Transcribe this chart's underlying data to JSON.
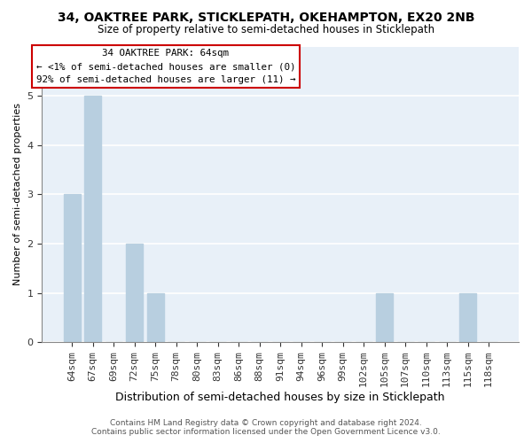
{
  "title": "34, OAKTREE PARK, STICKLEPATH, OKEHAMPTON, EX20 2NB",
  "subtitle": "Size of property relative to semi-detached houses in Sticklepath",
  "xlabel": "Distribution of semi-detached houses by size in Sticklepath",
  "ylabel": "Number of semi-detached properties",
  "categories": [
    "64sqm",
    "67sqm",
    "69sqm",
    "72sqm",
    "75sqm",
    "78sqm",
    "80sqm",
    "83sqm",
    "86sqm",
    "88sqm",
    "91sqm",
    "94sqm",
    "96sqm",
    "99sqm",
    "102sqm",
    "105sqm",
    "107sqm",
    "110sqm",
    "113sqm",
    "115sqm",
    "118sqm"
  ],
  "values": [
    3,
    5,
    0,
    2,
    1,
    0,
    0,
    0,
    0,
    0,
    0,
    0,
    0,
    0,
    0,
    1,
    0,
    0,
    0,
    1,
    0
  ],
  "bar_color": "#b8cfe0",
  "ylim": [
    0,
    6
  ],
  "yticks": [
    0,
    1,
    2,
    3,
    4,
    5,
    6
  ],
  "annotation_title": "34 OAKTREE PARK: 64sqm",
  "annotation_line1": "← <1% of semi-detached houses are smaller (0)",
  "annotation_line2": "92% of semi-detached houses are larger (11) →",
  "footer_line1": "Contains HM Land Registry data © Crown copyright and database right 2024.",
  "footer_line2": "Contains public sector information licensed under the Open Government Licence v3.0.",
  "bg_color": "#ffffff",
  "plot_bg_color": "#e8f0f8",
  "grid_color": "#ffffff",
  "annotation_box_color": "#ffffff",
  "annotation_box_edge": "#cc0000"
}
